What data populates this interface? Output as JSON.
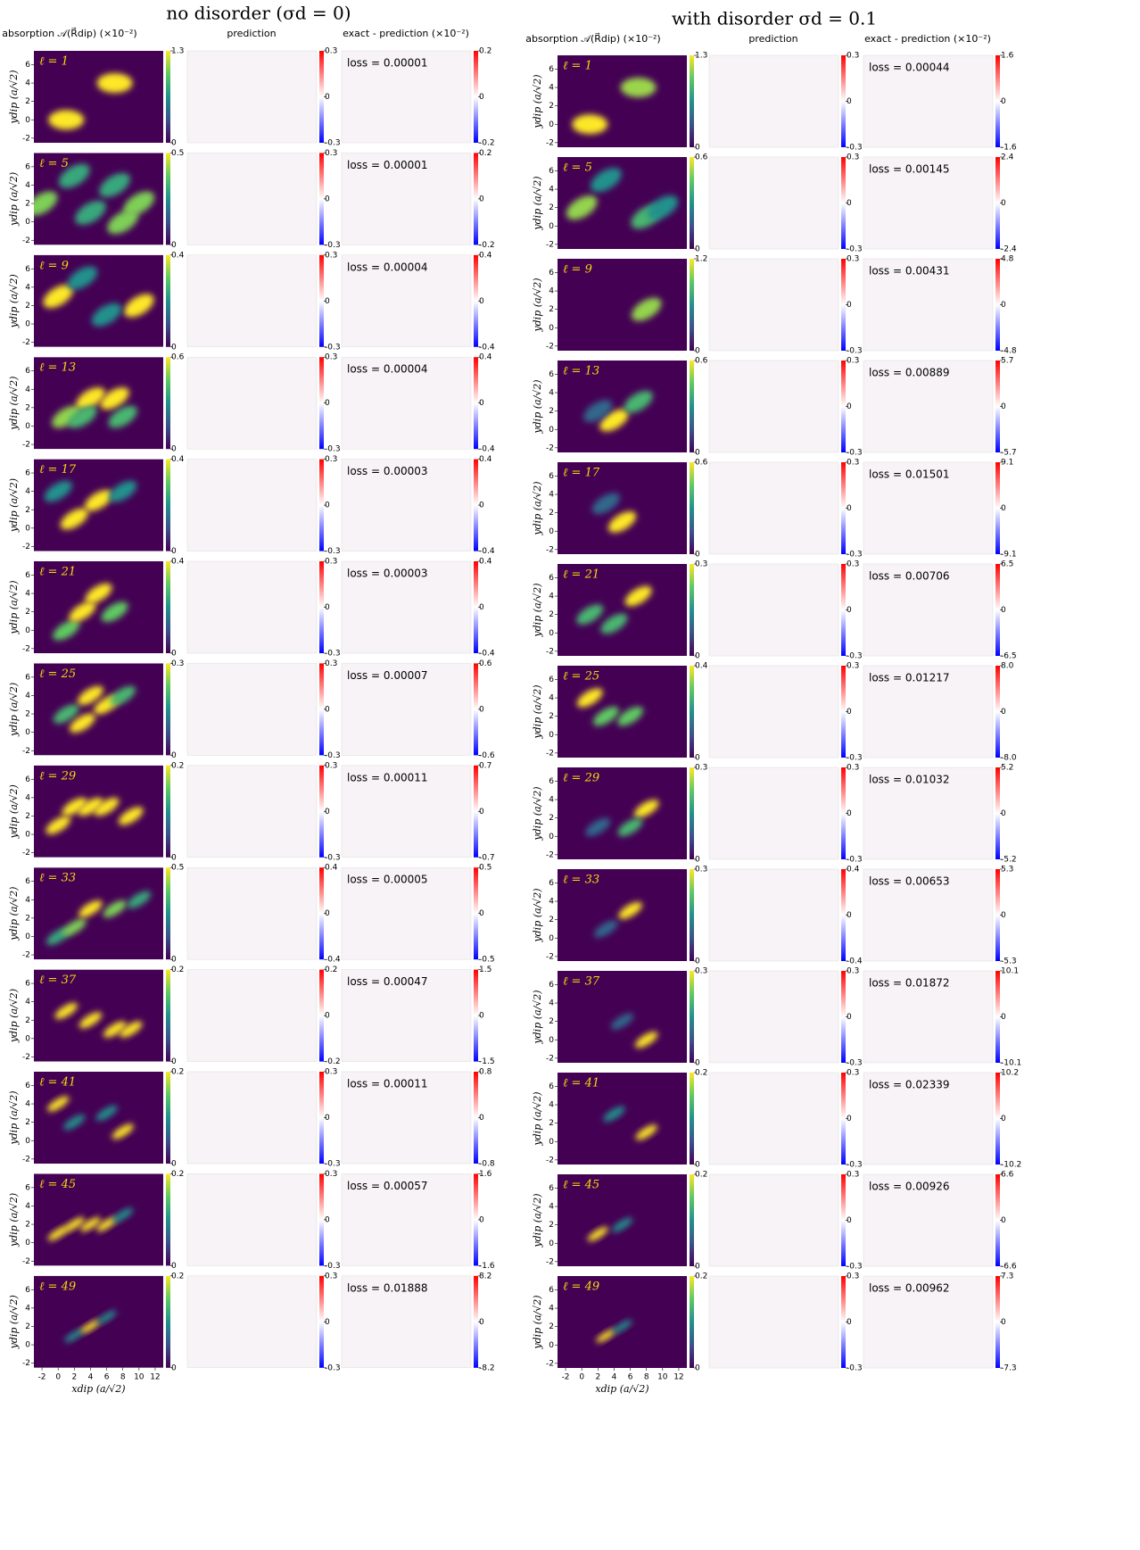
{
  "figure": {
    "y_label": "ydip (a/√2)",
    "x_label": "xdip (a/√2)",
    "xlim": [
      -3,
      13
    ],
    "ylim": [
      -2.5,
      7.5
    ],
    "xticks": [
      -2,
      0,
      2,
      4,
      6,
      8,
      10,
      12
    ],
    "yticks": [
      -2,
      0,
      2,
      4,
      6
    ],
    "panels": [
      {
        "title": "no disorder (σd = 0)",
        "headers": [
          "absorption 𝒜(R⃗dip) (×10⁻²)",
          "prediction",
          "exact - prediction (×10⁻²)"
        ],
        "rows": [
          {
            "label": "ℓ = 1",
            "abs_ticks": [
              0,
              1.3
            ],
            "blobs": [
              [
                1,
                0,
                1.3
              ],
              [
                7,
                4,
                1.3
              ]
            ],
            "pred_ticks": [
              -0.3,
              0,
              0.3
            ],
            "diff_ticks": [
              -0.2,
              0,
              0.2
            ],
            "loss": "loss = 0.00001"
          },
          {
            "label": "ℓ = 5",
            "abs_ticks": [
              0,
              0.5
            ],
            "blobs": [
              [
                -2,
                2,
                0.4
              ],
              [
                2,
                5,
                0.3
              ],
              [
                4,
                1,
                0.3
              ],
              [
                7,
                4,
                0.3
              ],
              [
                10,
                2,
                0.4
              ],
              [
                8,
                0,
                0.4
              ]
            ],
            "pred_ticks": [
              -0.3,
              0,
              0.3
            ],
            "diff_ticks": [
              -0.2,
              0,
              0.2
            ],
            "loss": "loss = 0.00001"
          },
          {
            "label": "ℓ = 9",
            "abs_ticks": [
              0,
              0.4
            ],
            "blobs": [
              [
                0,
                3,
                0.4
              ],
              [
                10,
                2,
                0.4
              ],
              [
                3,
                5,
                0.2
              ],
              [
                6,
                1,
                0.2
              ]
            ],
            "pred_ticks": [
              -0.3,
              0,
              0.3
            ],
            "diff_ticks": [
              -0.4,
              0,
              0.4
            ],
            "loss": "loss = 0.00004"
          },
          {
            "label": "ℓ = 13",
            "abs_ticks": [
              0,
              0.6
            ],
            "blobs": [
              [
                1,
                1,
                0.5
              ],
              [
                4,
                3,
                0.6
              ],
              [
                7,
                3,
                0.6
              ],
              [
                3,
                1,
                0.4
              ],
              [
                8,
                1,
                0.4
              ]
            ],
            "pred_ticks": [
              -0.3,
              0,
              0.3
            ],
            "diff_ticks": [
              -0.4,
              0,
              0.4
            ],
            "loss": "loss = 0.00004"
          },
          {
            "label": "ℓ = 17",
            "abs_ticks": [
              0,
              0.4
            ],
            "blobs": [
              [
                2,
                1,
                0.4
              ],
              [
                5,
                3,
                0.4
              ],
              [
                0,
                4,
                0.2
              ],
              [
                8,
                4,
                0.2
              ]
            ],
            "pred_ticks": [
              -0.3,
              0,
              0.3
            ],
            "diff_ticks": [
              -0.4,
              0,
              0.4
            ],
            "loss": "loss = 0.00003"
          },
          {
            "label": "ℓ = 21",
            "abs_ticks": [
              0,
              0.4
            ],
            "blobs": [
              [
                1,
                0,
                0.3
              ],
              [
                3,
                2,
                0.4
              ],
              [
                5,
                4,
                0.4
              ],
              [
                7,
                2,
                0.3
              ]
            ],
            "pred_ticks": [
              -0.3,
              0,
              0.3
            ],
            "diff_ticks": [
              -0.4,
              0,
              0.4
            ],
            "loss": "loss = 0.00003"
          },
          {
            "label": "ℓ = 25",
            "abs_ticks": [
              0,
              0.3
            ],
            "blobs": [
              [
                1,
                2,
                0.2
              ],
              [
                3,
                1,
                0.3
              ],
              [
                4,
                4,
                0.3
              ],
              [
                6,
                3,
                0.3
              ],
              [
                8,
                4,
                0.2
              ]
            ],
            "pred_ticks": [
              -0.3,
              0,
              0.3
            ],
            "diff_ticks": [
              -0.6,
              0,
              0.6
            ],
            "loss": "loss = 0.00007"
          },
          {
            "label": "ℓ = 29",
            "abs_ticks": [
              0,
              0.2
            ],
            "blobs": [
              [
                0,
                1,
                0.2
              ],
              [
                2,
                3,
                0.2
              ],
              [
                4,
                3,
                0.2
              ],
              [
                6,
                3,
                0.2
              ],
              [
                9,
                2,
                0.2
              ]
            ],
            "pred_ticks": [
              -0.3,
              0,
              0.3
            ],
            "diff_ticks": [
              -0.7,
              0,
              0.7
            ],
            "loss": "loss = 0.00011"
          },
          {
            "label": "ℓ = 33",
            "abs_ticks": [
              0,
              0.5
            ],
            "blobs": [
              [
                0,
                0,
                0.3
              ],
              [
                2,
                1,
                0.4
              ],
              [
                4,
                3,
                0.5
              ],
              [
                7,
                3,
                0.4
              ],
              [
                10,
                4,
                0.3
              ]
            ],
            "pred_ticks": [
              -0.4,
              0,
              0.4
            ],
            "diff_ticks": [
              -0.5,
              0,
              0.5
            ],
            "loss": "loss = 0.00005"
          },
          {
            "label": "ℓ = 37",
            "abs_ticks": [
              0,
              0.2
            ],
            "blobs": [
              [
                1,
                3,
                0.2
              ],
              [
                4,
                2,
                0.2
              ],
              [
                7,
                1,
                0.2
              ],
              [
                9,
                1,
                0.2
              ]
            ],
            "pred_ticks": [
              -0.2,
              0,
              0.2
            ],
            "diff_ticks": [
              -1.5,
              0,
              1.5
            ],
            "loss": "loss = 0.00047"
          },
          {
            "label": "ℓ = 41",
            "abs_ticks": [
              0,
              0.2
            ],
            "blobs": [
              [
                0,
                4,
                0.2
              ],
              [
                2,
                2,
                0.1
              ],
              [
                6,
                3,
                0.1
              ],
              [
                8,
                1,
                0.2
              ]
            ],
            "pred_ticks": [
              -0.3,
              0,
              0.3
            ],
            "diff_ticks": [
              -0.8,
              0,
              0.8
            ],
            "loss": "loss = 0.00011"
          },
          {
            "label": "ℓ = 45",
            "abs_ticks": [
              0,
              0.2
            ],
            "blobs": [
              [
                0,
                1,
                0.2
              ],
              [
                2,
                2,
                0.2
              ],
              [
                4,
                2,
                0.2
              ],
              [
                6,
                2,
                0.2
              ],
              [
                8,
                3,
                0.1
              ]
            ],
            "pred_ticks": [
              -0.3,
              0,
              0.3
            ],
            "diff_ticks": [
              -1.6,
              0,
              1.6
            ],
            "loss": "loss = 0.00057"
          },
          {
            "label": "ℓ = 49",
            "abs_ticks": [
              0,
              0.2
            ],
            "blobs": [
              [
                2,
                1,
                0.1
              ],
              [
                4,
                2,
                0.2
              ],
              [
                6,
                3,
                0.1
              ]
            ],
            "pred_ticks": [
              -0.3,
              0,
              0.3
            ],
            "diff_ticks": [
              -8.2,
              0,
              8.2
            ],
            "loss": "loss = 0.01888"
          }
        ]
      },
      {
        "title": "with disorder σd = 0.1",
        "headers": [
          "absorption 𝒜(R⃗dip) (×10⁻²)",
          "prediction",
          "exact - prediction (×10⁻²)"
        ],
        "rows": [
          {
            "label": "ℓ = 1",
            "abs_ticks": [
              0,
              1.3
            ],
            "blobs": [
              [
                1,
                0,
                1.3
              ],
              [
                7,
                4,
                1.1
              ]
            ],
            "pred_ticks": [
              -0.3,
              0,
              0.3
            ],
            "diff_ticks": [
              -1.6,
              0,
              1.6
            ],
            "loss": "loss = 0.00044"
          },
          {
            "label": "ℓ = 5",
            "abs_ticks": [
              0,
              0.6
            ],
            "blobs": [
              [
                0,
                2,
                0.5
              ],
              [
                3,
                5,
                0.3
              ],
              [
                8,
                1,
                0.4
              ],
              [
                10,
                2,
                0.3
              ]
            ],
            "pred_ticks": [
              -0.3,
              0,
              0.3
            ],
            "diff_ticks": [
              -2.4,
              0,
              2.4
            ],
            "loss": "loss = 0.00145"
          },
          {
            "label": "ℓ = 9",
            "abs_ticks": [
              0,
              1.2
            ],
            "blobs": [
              [
                8,
                2,
                1.0
              ]
            ],
            "pred_ticks": [
              -0.3,
              0,
              0.3
            ],
            "diff_ticks": [
              -4.8,
              0,
              4.8
            ],
            "loss": "loss = 0.00431"
          },
          {
            "label": "ℓ = 13",
            "abs_ticks": [
              0,
              0.6
            ],
            "blobs": [
              [
                4,
                1,
                0.6
              ],
              [
                7,
                3,
                0.4
              ],
              [
                2,
                2,
                0.2
              ]
            ],
            "pred_ticks": [
              -0.3,
              0,
              0.3
            ],
            "diff_ticks": [
              -5.7,
              0,
              5.7
            ],
            "loss": "loss = 0.00889"
          },
          {
            "label": "ℓ = 17",
            "abs_ticks": [
              0,
              0.6
            ],
            "blobs": [
              [
                5,
                1,
                0.6
              ],
              [
                3,
                3,
                0.2
              ]
            ],
            "pred_ticks": [
              -0.3,
              0,
              0.3
            ],
            "diff_ticks": [
              -9.1,
              0,
              9.1
            ],
            "loss": "loss = 0.01501"
          },
          {
            "label": "ℓ = 21",
            "abs_ticks": [
              0,
              0.3
            ],
            "blobs": [
              [
                7,
                4,
                0.3
              ],
              [
                4,
                1,
                0.2
              ],
              [
                1,
                2,
                0.2
              ]
            ],
            "pred_ticks": [
              -0.3,
              0,
              0.3
            ],
            "diff_ticks": [
              -6.5,
              0,
              6.5
            ],
            "loss": "loss = 0.00706"
          },
          {
            "label": "ℓ = 25",
            "abs_ticks": [
              0,
              0.4
            ],
            "blobs": [
              [
                1,
                4,
                0.4
              ],
              [
                3,
                2,
                0.3
              ],
              [
                6,
                2,
                0.3
              ]
            ],
            "pred_ticks": [
              -0.3,
              0,
              0.3
            ],
            "diff_ticks": [
              {
                "value": -8,
                "label": "-8.0"
              },
              0,
              {
                "value": 8,
                "label": "8.0"
              }
            ],
            "loss": "loss = 0.01217"
          },
          {
            "label": "ℓ = 29",
            "abs_ticks": [
              0,
              0.3
            ],
            "blobs": [
              [
                8,
                3,
                0.3
              ],
              [
                6,
                1,
                0.2
              ],
              [
                2,
                1,
                0.1
              ]
            ],
            "pred_ticks": [
              -0.3,
              0,
              0.3
            ],
            "diff_ticks": [
              -5.2,
              0,
              5.2
            ],
            "loss": "loss = 0.01032"
          },
          {
            "label": "ℓ = 33",
            "abs_ticks": [
              0,
              0.3
            ],
            "blobs": [
              [
                6,
                3,
                0.3
              ],
              [
                3,
                1,
                0.1
              ]
            ],
            "pred_ticks": [
              -0.4,
              0,
              0.4
            ],
            "diff_ticks": [
              -5.3,
              0,
              5.3
            ],
            "loss": "loss = 0.00653"
          },
          {
            "label": "ℓ = 37",
            "abs_ticks": [
              0,
              0.3
            ],
            "blobs": [
              [
                8,
                0,
                0.3
              ],
              [
                5,
                2,
                0.1
              ]
            ],
            "pred_ticks": [
              -0.3,
              0,
              0.3
            ],
            "diff_ticks": [
              -10.1,
              0,
              10.1
            ],
            "loss": "loss = 0.01872"
          },
          {
            "label": "ℓ = 41",
            "abs_ticks": [
              0,
              0.2
            ],
            "blobs": [
              [
                8,
                1,
                0.2
              ],
              [
                4,
                3,
                0.1
              ]
            ],
            "pred_ticks": [
              -0.3,
              0,
              0.3
            ],
            "diff_ticks": [
              -10.2,
              0,
              10.2
            ],
            "loss": "loss = 0.02339"
          },
          {
            "label": "ℓ = 45",
            "abs_ticks": [
              0,
              0.2
            ],
            "blobs": [
              [
                2,
                1,
                0.2
              ],
              [
                5,
                2,
                0.1
              ]
            ],
            "pred_ticks": [
              -0.3,
              0,
              0.3
            ],
            "diff_ticks": [
              -6.6,
              0,
              6.6
            ],
            "loss": "loss = 0.00926"
          },
          {
            "label": "ℓ = 49",
            "abs_ticks": [
              0,
              0.2
            ],
            "blobs": [
              [
                3,
                1,
                0.2
              ],
              [
                5,
                2,
                0.1
              ]
            ],
            "pred_ticks": [
              -0.3,
              0,
              0.3
            ],
            "diff_ticks": [
              -7.3,
              0,
              7.3
            ],
            "loss": "loss = 0.00962"
          }
        ]
      }
    ]
  }
}
